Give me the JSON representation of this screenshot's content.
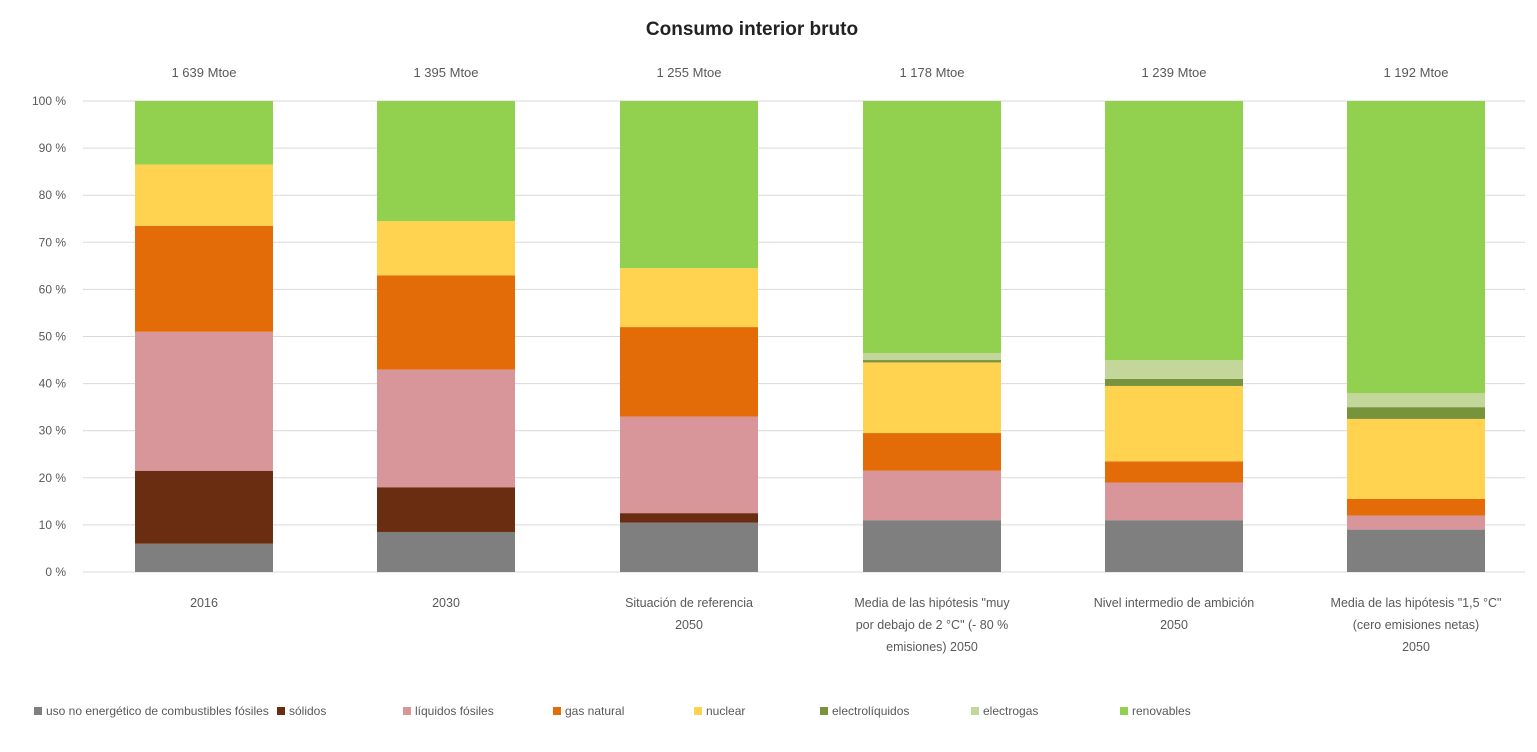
{
  "chart_data": {
    "type": "bar",
    "stacked": true,
    "title": "Consumo interior bruto",
    "xlabel": "",
    "ylabel": "",
    "ylim": [
      0,
      100
    ],
    "y_ticks": [
      "0 %",
      "10 %",
      "20 %",
      "30 %",
      "40 %",
      "50 %",
      "60 %",
      "70 %",
      "80 %",
      "90 %",
      "100 %"
    ],
    "grid": true,
    "legend_position": "bottom",
    "categories": [
      [
        "2016"
      ],
      [
        "2030"
      ],
      [
        "Situación de referencia",
        "2050"
      ],
      [
        "Media de las hipótesis \"muy",
        "por debajo de 2 °C\" (- 80 %",
        "emisiones) 2050"
      ],
      [
        "Nivel intermedio de ambición",
        "2050"
      ],
      [
        "Media de las hipótesis \"1,5 °C\"",
        "(cero emisiones netas)",
        "2050"
      ]
    ],
    "totals": [
      "1 639 Mtoe",
      "1 395 Mtoe",
      "1 255 Mtoe",
      "1 178 Mtoe",
      "1 239 Mtoe",
      "1 192 Mtoe"
    ],
    "series": [
      {
        "name": "uso no energético de combustibles fósiles",
        "color": "#7f7f7f",
        "values": [
          6,
          8.5,
          10.5,
          11,
          11,
          9
        ]
      },
      {
        "name": "sólidos",
        "color": "#6b2d12",
        "values": [
          15.5,
          9.5,
          2,
          0,
          0,
          0
        ]
      },
      {
        "name": "líquidos fósiles",
        "color": "#d9969a",
        "values": [
          29.5,
          25,
          20.5,
          10.5,
          8,
          3
        ]
      },
      {
        "name": "gas natural",
        "color": "#e36c09",
        "values": [
          22.5,
          20,
          19,
          8,
          4.5,
          3.5
        ]
      },
      {
        "name": "nuclear",
        "color": "#ffd34f",
        "values": [
          13,
          11.5,
          12.5,
          15,
          16,
          17
        ]
      },
      {
        "name": "electrolíquidos",
        "color": "#77933c",
        "values": [
          0,
          0,
          0,
          0.5,
          1.5,
          2.5
        ]
      },
      {
        "name": "electrogas",
        "color": "#c4d79b",
        "values": [
          0,
          0,
          0,
          1.5,
          4,
          3
        ]
      },
      {
        "name": "renovables",
        "color": "#92d050",
        "values": [
          13.5,
          25.5,
          35.5,
          53.5,
          55,
          62
        ]
      }
    ]
  }
}
